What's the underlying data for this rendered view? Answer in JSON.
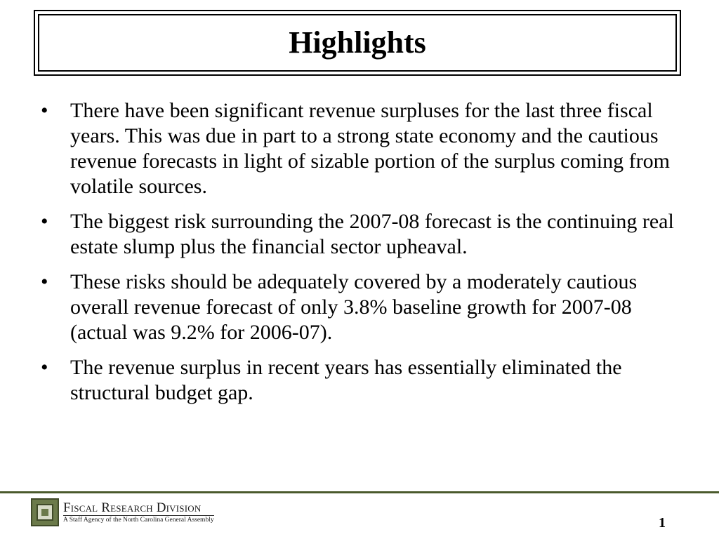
{
  "slide": {
    "title": "Highlights",
    "bullet_symbol": "•",
    "bullets": [
      "There have been significant revenue surpluses for the last three fiscal years. This was due in part to a strong state economy and the cautious revenue forecasts in light of sizable portion of the surplus coming from volatile sources.",
      "The biggest risk surrounding the 2007-08 forecast is the continuing real estate slump plus the financial sector upheaval.",
      "These risks should be adequately covered by a moderately cautious overall revenue forecast of only 3.8% baseline growth for 2007-08 (actual was 9.2% for 2006-07).",
      "The revenue surplus in recent years has essentially eliminated the structural budget gap."
    ]
  },
  "footer": {
    "org_name": "Fiscal Research Division",
    "org_subtitle": "A Staff Agency of the North Carolina General Assembly",
    "page_number": "1",
    "logo_icon": "fiscal-research-division-logo",
    "accent_color": "#4a5a2c"
  }
}
